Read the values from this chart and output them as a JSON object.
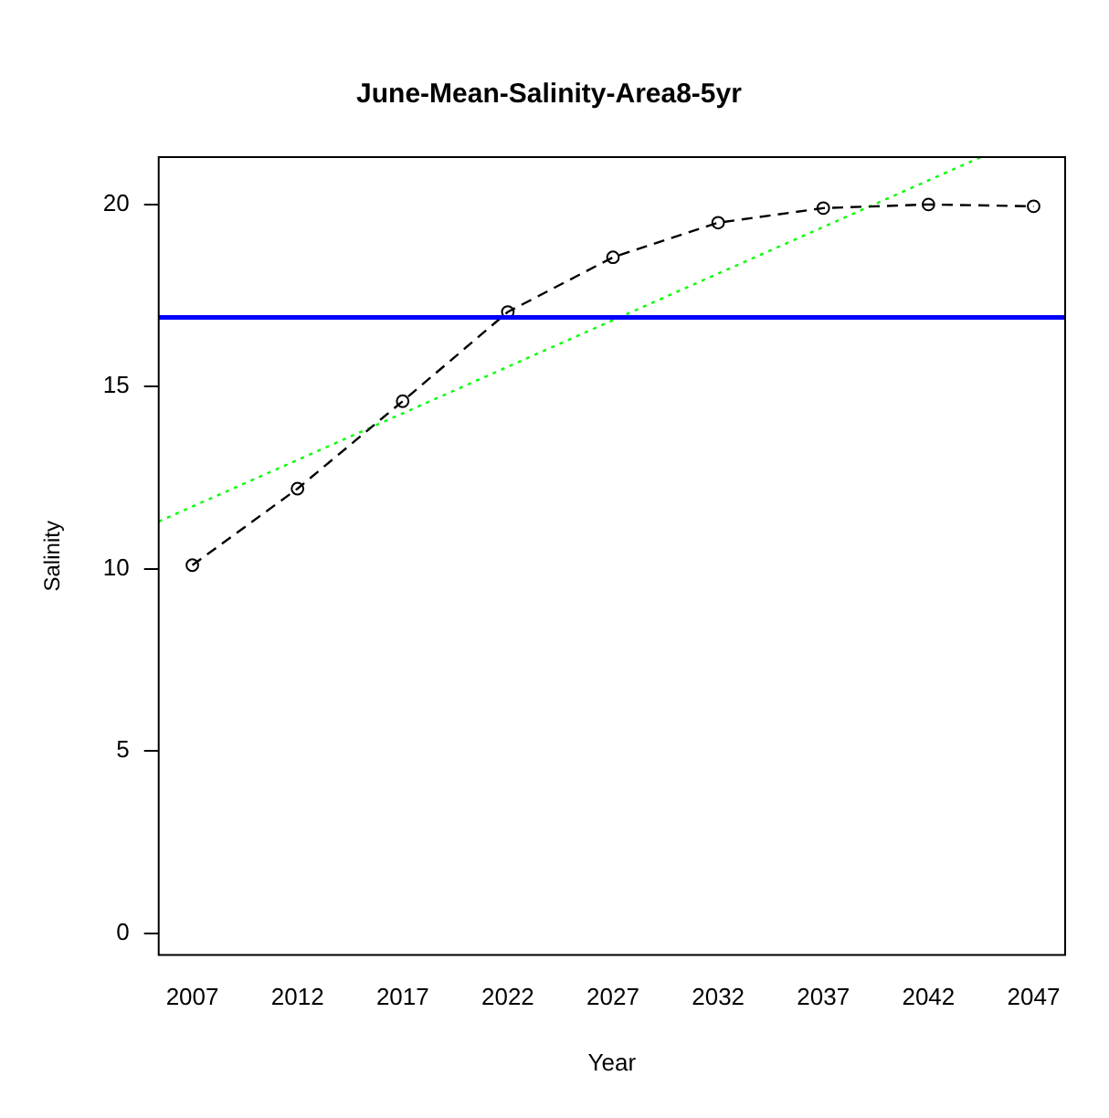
{
  "chart_data": {
    "type": "line",
    "title": "June-Mean-Salinity-Area8-5yr",
    "xlabel": "Year",
    "ylabel": "Salinity",
    "x": [
      2007,
      2012,
      2017,
      2022,
      2027,
      2032,
      2037,
      2042,
      2047
    ],
    "xlim": [
      2005.4,
      2048.5
    ],
    "xticks": [
      2007,
      2012,
      2017,
      2022,
      2027,
      2032,
      2037,
      2042,
      2047
    ],
    "ylim": [
      -0.6,
      21.3
    ],
    "yticks": [
      0,
      5,
      10,
      15,
      20
    ],
    "series": [
      {
        "color": "#000000",
        "marker": "circle",
        "line_style": "dashed",
        "values": [
          10.1,
          12.2,
          14.6,
          17.05,
          18.55,
          19.5,
          19.9,
          20.0,
          19.95
        ]
      },
      {
        "type": "line",
        "color": "#00ff00",
        "marker": "none",
        "line_style": "dotted",
        "x": [
          2005.4,
          2044.5
        ],
        "values": [
          11.3,
          21.3
        ]
      }
    ],
    "ref_lines": [
      {
        "axis": "y",
        "value": 16.9,
        "color": "#0000ff"
      }
    ]
  }
}
